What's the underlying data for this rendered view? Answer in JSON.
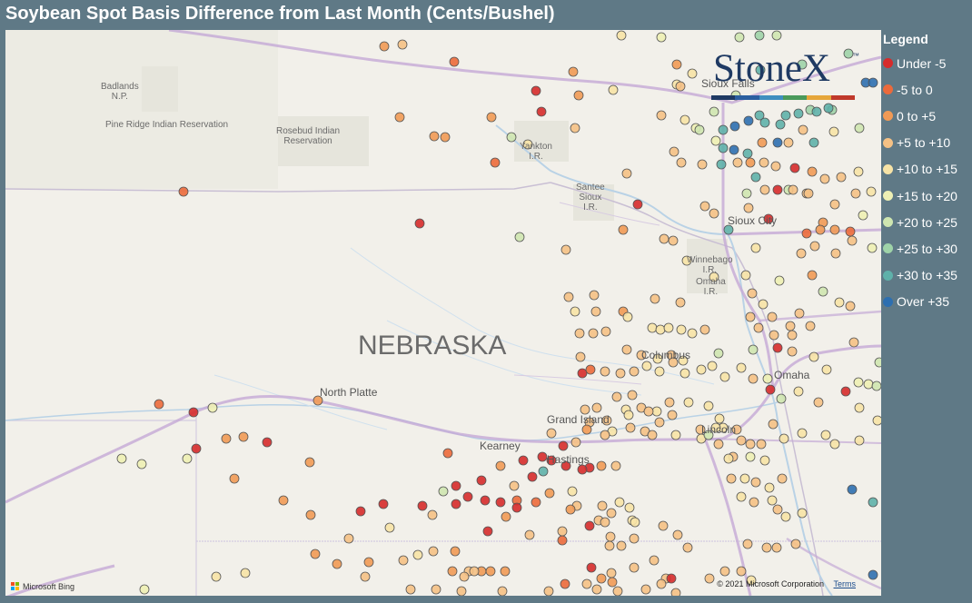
{
  "title": "Soybean Spot Basis Difference from Last Month (Cents/Bushel)",
  "logo": {
    "text": "StoneX",
    "tm": "™"
  },
  "map_labels": {
    "badlands": "Badlands\nN.P.",
    "pine_ridge": "Pine Ridge Indian Reservation",
    "rosebud": "Rosebud Indian\nReservation",
    "yankton": "Yankton\nI.R.",
    "santee": "Santee\nSioux\nI.R.",
    "sioux_city": "Sioux City",
    "winnebago": "Winnebago\nI.R.",
    "omaha_ir": "Omaha\nI.R.",
    "nebraska": "NEBRASKA",
    "columbus": "Columbus",
    "omaha": "Omaha",
    "north_platte": "North Platte",
    "grand_island": "Grand Island",
    "kearney": "Kearney",
    "hastings": "Hastings",
    "lincoln": "Lincoln",
    "sioux_falls": "Sioux Falls"
  },
  "attribution": {
    "bing": "Microsoft Bing",
    "copyright": "© 2021 Microsoft Corporation",
    "terms": "Terms"
  },
  "legend": {
    "title": "Legend",
    "items": [
      {
        "label": "Under -5",
        "color": "#d62b2b"
      },
      {
        "label": "-5 to 0",
        "color": "#ec6a3b"
      },
      {
        "label": "0 to +5",
        "color": "#f19a55"
      },
      {
        "label": "+5 to +10",
        "color": "#f5c185"
      },
      {
        "label": "+10 to +15",
        "color": "#f7e3a6"
      },
      {
        "label": "+15 to +20",
        "color": "#eef0b4"
      },
      {
        "label": "+20 to +25",
        "color": "#cfe6b0"
      },
      {
        "label": "+25 to +30",
        "color": "#9fd3a8"
      },
      {
        "label": "+30 to +35",
        "color": "#5fb1aa"
      },
      {
        "label": "Over +35",
        "color": "#2d6fb0"
      }
    ]
  }
}
